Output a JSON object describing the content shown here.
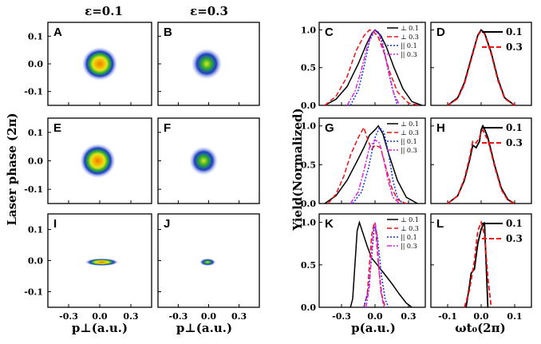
{
  "figure": {
    "col_titles": [
      "ε=0.1",
      "ε=0.3"
    ],
    "y_label_left": "Laser phase (2π)",
    "x_label_left": "p⊥(a.u.)",
    "y_label_mid": "Yield(Normalized)",
    "x_label_mid": "p(a.u.)",
    "x_label_right": "ωt₀(2π)",
    "heat_y_ticks": [
      "0.1",
      "0.0",
      "-0.1"
    ],
    "heat_x_ticks": [
      "-0.3",
      "0.0",
      "0.3"
    ],
    "mid_x_ticks": [
      "-0.3",
      "0.0",
      "0.3"
    ],
    "right_x_ticks": [
      "-0.1",
      "0.0",
      "0.1"
    ],
    "yield_y_ticks": [
      "0.0",
      "0.5",
      "1.0"
    ],
    "panel_labels": [
      "A",
      "B",
      "C",
      "D",
      "E",
      "F",
      "G",
      "H",
      "I",
      "J",
      "K",
      "L"
    ],
    "colors": {
      "perp01": "#000000",
      "perp03": "#ee1111",
      "par01": "#1133ee",
      "par03": "#dd22dd"
    }
  },
  "chart_data": [
    {
      "panel": "A",
      "type": "heatmap",
      "title": "ε=0.1",
      "xlabel": "p⊥(a.u.)",
      "ylabel": "Laser phase (2π)",
      "xlim": [
        -0.5,
        0.5
      ],
      "ylim": [
        -0.15,
        0.15
      ],
      "description": "elliptical blob centered near (0, 0)",
      "center": [
        0.0,
        0.0
      ],
      "spread": [
        0.17,
        0.06
      ]
    },
    {
      "panel": "B",
      "type": "heatmap",
      "title": "ε=0.3",
      "xlim": [
        -0.5,
        0.5
      ],
      "ylim": [
        -0.15,
        0.15
      ],
      "center": [
        -0.02,
        0.0
      ],
      "spread": [
        0.15,
        0.055
      ]
    },
    {
      "panel": "E",
      "type": "heatmap",
      "xlim": [
        -0.5,
        0.5
      ],
      "ylim": [
        -0.15,
        0.15
      ],
      "center": [
        -0.02,
        0.0
      ],
      "spread": [
        0.17,
        0.06
      ]
    },
    {
      "panel": "F",
      "type": "heatmap",
      "xlim": [
        -0.5,
        0.5
      ],
      "ylim": [
        -0.15,
        0.15
      ],
      "center": [
        -0.05,
        0.0
      ],
      "spread": [
        0.14,
        0.05
      ]
    },
    {
      "panel": "I",
      "type": "heatmap",
      "xlim": [
        -0.5,
        0.5
      ],
      "ylim": [
        -0.15,
        0.15
      ],
      "center": [
        0.02,
        -0.005
      ],
      "spread": [
        0.16,
        0.012
      ]
    },
    {
      "panel": "J",
      "type": "heatmap",
      "xlim": [
        -0.5,
        0.5
      ],
      "ylim": [
        -0.15,
        0.15
      ],
      "center": [
        -0.01,
        -0.005
      ],
      "spread": [
        0.08,
        0.012
      ]
    },
    {
      "panel": "C",
      "type": "line",
      "xlabel": "p(a.u.)",
      "ylabel": "Yield(Normalized)",
      "xlim": [
        -0.5,
        0.45
      ],
      "ylim": [
        0,
        1.1
      ],
      "legend": [
        "⊥ 0.1",
        "⊥ 0.3",
        "|| 0.1",
        "|| 0.3"
      ],
      "series": [
        {
          "name": "⊥ 0.1",
          "x": [
            -0.45,
            -0.35,
            -0.25,
            -0.15,
            -0.08,
            -0.03,
            0.0,
            0.05,
            0.1,
            0.17,
            0.25,
            0.33,
            0.42
          ],
          "values": [
            0.0,
            0.08,
            0.25,
            0.55,
            0.8,
            0.95,
            1.0,
            0.93,
            0.78,
            0.5,
            0.22,
            0.05,
            0.0
          ]
        },
        {
          "name": "⊥ 0.3",
          "x": [
            -0.45,
            -0.35,
            -0.25,
            -0.17,
            -0.1,
            -0.05,
            -0.02,
            0.03,
            0.08,
            0.13,
            0.2,
            0.3,
            0.4
          ],
          "values": [
            0.0,
            0.12,
            0.38,
            0.72,
            0.92,
            1.0,
            0.99,
            0.9,
            0.7,
            0.45,
            0.18,
            0.03,
            0.0
          ]
        },
        {
          "name": "|| 0.1",
          "x": [
            -0.22,
            -0.15,
            -0.1,
            -0.05,
            0.0,
            0.03,
            0.06,
            0.1,
            0.15,
            0.2
          ],
          "values": [
            0.0,
            0.2,
            0.5,
            0.85,
            1.0,
            0.97,
            0.88,
            0.6,
            0.25,
            0.0
          ]
        },
        {
          "name": "|| 0.3",
          "x": [
            -0.25,
            -0.18,
            -0.12,
            -0.07,
            -0.03,
            0.0,
            0.04,
            0.08,
            0.12,
            0.17,
            0.22
          ],
          "values": [
            0.0,
            0.18,
            0.48,
            0.78,
            0.94,
            0.99,
            0.93,
            0.72,
            0.45,
            0.15,
            0.0
          ]
        }
      ]
    },
    {
      "panel": "D",
      "type": "line",
      "xlabel": "ωt₀(2π)",
      "xlim": [
        -0.15,
        0.15
      ],
      "ylim": [
        0,
        1.1
      ],
      "legend": [
        "0.1",
        "0.3"
      ],
      "series": [
        {
          "name": "0.1",
          "x": [
            -0.1,
            -0.07,
            -0.05,
            -0.03,
            -0.01,
            0.0,
            0.01,
            0.03,
            0.05,
            0.07,
            0.1
          ],
          "values": [
            0.0,
            0.1,
            0.3,
            0.62,
            0.93,
            1.0,
            0.96,
            0.7,
            0.35,
            0.1,
            0.0
          ]
        },
        {
          "name": "0.3",
          "x": [
            -0.1,
            -0.07,
            -0.05,
            -0.03,
            -0.01,
            0.0,
            0.01,
            0.03,
            0.05,
            0.07,
            0.1
          ],
          "values": [
            0.0,
            0.09,
            0.28,
            0.6,
            0.92,
            0.99,
            0.95,
            0.68,
            0.33,
            0.09,
            0.0
          ]
        }
      ]
    },
    {
      "panel": "G",
      "type": "line",
      "xlabel": "p(a.u.)",
      "ylabel": "Yield(Normalized)",
      "xlim": [
        -0.5,
        0.45
      ],
      "ylim": [
        0,
        1.1
      ],
      "legend": [
        "⊥ 0.1",
        "⊥ 0.3",
        "|| 0.1",
        "|| 0.3"
      ],
      "series": [
        {
          "name": "⊥ 0.1",
          "x": [
            -0.45,
            -0.35,
            -0.25,
            -0.17,
            -0.1,
            -0.05,
            0.0,
            0.03,
            0.07,
            0.12,
            0.2,
            0.28,
            0.38
          ],
          "values": [
            0.0,
            0.1,
            0.3,
            0.52,
            0.72,
            0.88,
            0.95,
            1.0,
            0.9,
            0.65,
            0.3,
            0.08,
            0.0
          ]
        },
        {
          "name": "⊥ 0.3",
          "x": [
            -0.42,
            -0.35,
            -0.28,
            -0.22,
            -0.15,
            -0.1,
            -0.06,
            -0.03,
            0.0,
            0.05,
            0.1,
            0.15,
            0.2,
            0.28
          ],
          "values": [
            0.0,
            0.12,
            0.35,
            0.62,
            0.85,
            0.98,
            0.8,
            0.7,
            0.75,
            0.72,
            0.45,
            0.2,
            0.05,
            0.0
          ]
        },
        {
          "name": "|| 0.1",
          "x": [
            -0.2,
            -0.12,
            -0.06,
            0.0,
            0.04,
            0.08,
            0.12,
            0.16,
            0.2,
            0.25
          ],
          "values": [
            0.0,
            0.15,
            0.45,
            0.85,
            0.98,
            0.92,
            0.65,
            0.3,
            0.08,
            0.0
          ]
        },
        {
          "name": "|| 0.3",
          "x": [
            -0.22,
            -0.15,
            -0.1,
            -0.05,
            0.0,
            0.04,
            0.08,
            0.12,
            0.16,
            0.22
          ],
          "values": [
            0.0,
            0.15,
            0.42,
            0.72,
            0.82,
            0.78,
            0.55,
            0.28,
            0.08,
            0.0
          ]
        }
      ]
    },
    {
      "panel": "H",
      "type": "line",
      "xlabel": "ωt₀(2π)",
      "xlim": [
        -0.15,
        0.15
      ],
      "ylim": [
        0,
        1.1
      ],
      "legend": [
        "0.1",
        "0.3"
      ],
      "series": [
        {
          "name": "0.1",
          "x": [
            -0.1,
            -0.07,
            -0.05,
            -0.035,
            -0.025,
            -0.015,
            -0.005,
            0.0,
            0.005,
            0.01,
            0.02,
            0.04,
            0.06,
            0.08,
            0.1
          ],
          "values": [
            0.0,
            0.1,
            0.3,
            0.55,
            0.75,
            0.72,
            0.8,
            0.95,
            1.0,
            0.96,
            0.85,
            0.5,
            0.2,
            0.05,
            0.0
          ]
        },
        {
          "name": "0.3",
          "x": [
            -0.1,
            -0.07,
            -0.05,
            -0.035,
            -0.025,
            -0.015,
            -0.005,
            0.0,
            0.005,
            0.01,
            0.02,
            0.04,
            0.06,
            0.08,
            0.1
          ],
          "values": [
            0.0,
            0.1,
            0.32,
            0.58,
            0.8,
            0.78,
            0.85,
            0.92,
            0.95,
            0.9,
            0.82,
            0.48,
            0.18,
            0.04,
            0.0
          ]
        }
      ]
    },
    {
      "panel": "K",
      "type": "line",
      "xlabel": "p(a.u.)",
      "ylabel": "Yield(Normalized)",
      "xlim": [
        -0.5,
        0.45
      ],
      "ylim": [
        0,
        1.1
      ],
      "legend": [
        "⊥ 0.1",
        "⊥ 0.3",
        "|| 0.1",
        "|| 0.3"
      ],
      "series": [
        {
          "name": "⊥ 0.1",
          "x": [
            -0.22,
            -0.2,
            -0.18,
            -0.16,
            -0.14,
            -0.11,
            -0.07,
            -0.03,
            0.02,
            0.08,
            0.15,
            0.22,
            0.28,
            0.33
          ],
          "values": [
            0.0,
            0.1,
            0.5,
            0.9,
            1.0,
            0.88,
            0.72,
            0.58,
            0.5,
            0.4,
            0.28,
            0.15,
            0.05,
            0.0
          ]
        },
        {
          "name": "⊥ 0.3",
          "x": [
            -0.1,
            -0.07,
            -0.05,
            -0.03,
            -0.01,
            0.0,
            0.01,
            0.03,
            0.06,
            0.09
          ],
          "values": [
            0.0,
            0.15,
            0.5,
            0.85,
            0.98,
            1.0,
            0.85,
            0.5,
            0.15,
            0.0
          ]
        },
        {
          "name": "|| 0.1",
          "x": [
            -0.1,
            -0.06,
            -0.03,
            -0.01,
            0.0,
            0.02,
            0.04,
            0.06,
            0.09,
            0.12
          ],
          "values": [
            0.0,
            0.2,
            0.6,
            0.9,
            0.95,
            0.85,
            0.6,
            0.35,
            0.1,
            0.0
          ]
        },
        {
          "name": "|| 0.3",
          "x": [
            -0.08,
            -0.05,
            -0.03,
            -0.015,
            0.0,
            0.015,
            0.03,
            0.05,
            0.08
          ],
          "values": [
            0.0,
            0.25,
            0.65,
            0.9,
            1.0,
            0.88,
            0.55,
            0.2,
            0.0
          ]
        }
      ]
    },
    {
      "panel": "L",
      "type": "line",
      "xlabel": "ωt₀(2π)",
      "xlim": [
        -0.15,
        0.15
      ],
      "ylim": [
        0,
        1.1
      ],
      "legend": [
        "0.1",
        "0.3"
      ],
      "series": [
        {
          "name": "0.1",
          "x": [
            -0.045,
            -0.035,
            -0.03,
            -0.02,
            -0.01,
            0.0,
            0.01,
            0.015,
            0.02
          ],
          "values": [
            0.0,
            0.25,
            0.4,
            0.45,
            0.75,
            0.92,
            1.0,
            0.5,
            0.0
          ]
        },
        {
          "name": "0.3",
          "x": [
            -0.05,
            -0.035,
            -0.02,
            -0.01,
            0.0,
            0.01,
            0.02,
            0.03
          ],
          "values": [
            0.0,
            0.2,
            0.55,
            0.9,
            1.0,
            0.85,
            0.35,
            0.0
          ]
        }
      ]
    }
  ]
}
